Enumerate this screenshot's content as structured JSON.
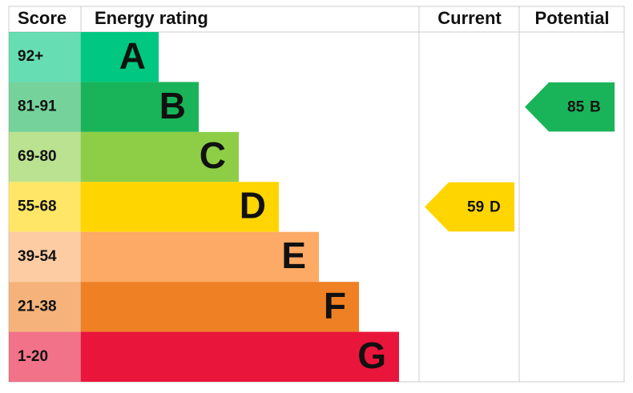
{
  "headers": {
    "score": "Score",
    "rating": "Energy rating",
    "current": "Current",
    "potential": "Potential"
  },
  "bands": [
    {
      "score": "92+",
      "letter": "A",
      "color": "#00c781"
    },
    {
      "score": "81-91",
      "letter": "B",
      "color": "#19b459"
    },
    {
      "score": "69-80",
      "letter": "C",
      "color": "#8dce46"
    },
    {
      "score": "55-68",
      "letter": "D",
      "color": "#ffd500"
    },
    {
      "score": "39-54",
      "letter": "E",
      "color": "#fcaa65"
    },
    {
      "score": "21-38",
      "letter": "F",
      "color": "#ef8023"
    },
    {
      "score": "1-20",
      "letter": "G",
      "color": "#e9153b"
    }
  ],
  "current": {
    "score": 59,
    "rating": "D"
  },
  "potential": {
    "score": 85,
    "rating": "B"
  }
}
